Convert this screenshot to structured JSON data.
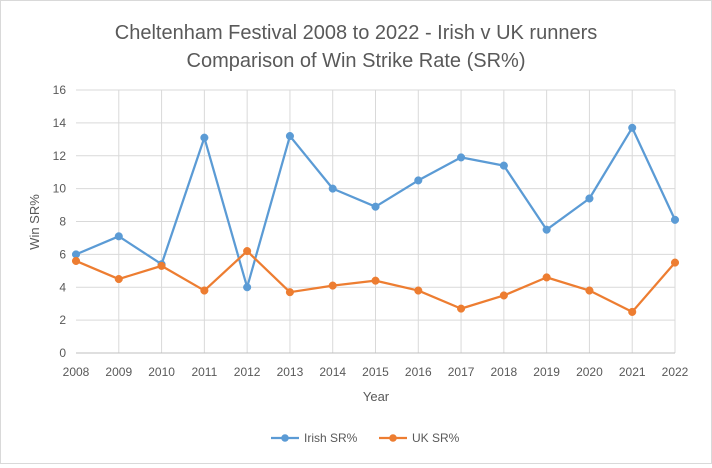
{
  "chart_data": {
    "type": "line",
    "title": [
      "Cheltenham Festival 2008 to 2022 - Irish v UK runners",
      "Comparison of Win Strike Rate (SR%)"
    ],
    "xlabel": "Year",
    "ylabel": "Win SR%",
    "categories": [
      "2008",
      "2009",
      "2010",
      "2011",
      "2012",
      "2013",
      "2014",
      "2015",
      "2016",
      "2017",
      "2018",
      "2019",
      "2020",
      "2021",
      "2022"
    ],
    "ylim": [
      0,
      16
    ],
    "yticks": [
      0,
      2,
      4,
      6,
      8,
      10,
      12,
      14,
      16
    ],
    "grid": true,
    "legend_position": "bottom",
    "series": [
      {
        "name": "Irish SR%",
        "color": "#5b9bd5",
        "values": [
          6.0,
          7.1,
          5.4,
          13.1,
          4.0,
          13.2,
          10.0,
          8.9,
          10.5,
          11.9,
          11.4,
          7.5,
          9.4,
          13.7,
          8.1
        ]
      },
      {
        "name": "UK SR%",
        "color": "#ed7d31",
        "values": [
          5.6,
          4.5,
          5.3,
          3.8,
          6.2,
          3.7,
          4.1,
          4.4,
          3.8,
          2.7,
          3.5,
          4.6,
          3.8,
          2.5,
          5.5
        ]
      }
    ]
  }
}
